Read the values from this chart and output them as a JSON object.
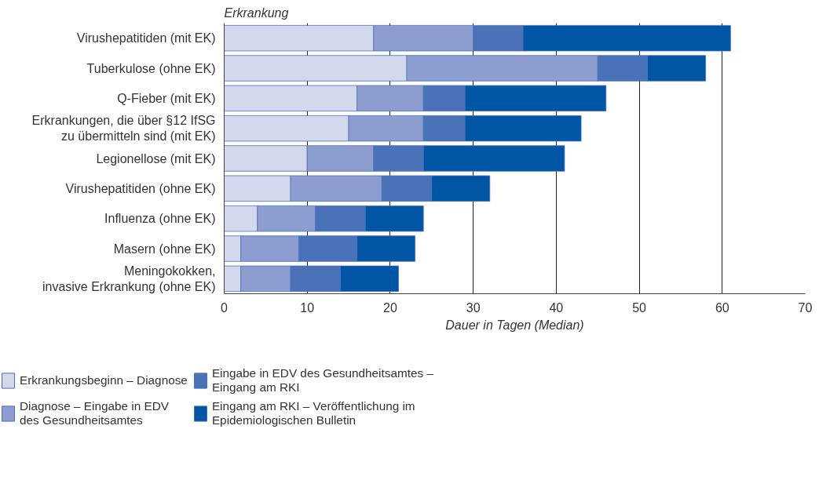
{
  "chart_data": {
    "type": "bar",
    "orientation": "horizontal",
    "stacked": true,
    "ylabel": "Erkrankung",
    "xlabel": "Dauer in Tagen (Median)",
    "categories": [
      "Virushepatitiden (mit EK)",
      "Tuberkulose (ohne EK)",
      "Q-Fieber (mit EK)",
      "Erkrankungen, die über §12 IfSG\nzu übermitteln sind (mit EK)",
      "Legionellose (mit EK)",
      "Virushepatitiden (ohne EK)",
      "Influenza (ohne EK)",
      "Masern (ohne EK)",
      "Meningokokken,\ninvasive Erkrankung (ohne EK)"
    ],
    "series": [
      {
        "name": "Erkrankungsbeginn – Diagnose",
        "color": "#d3d8ec",
        "values": [
          18,
          22,
          16,
          15,
          10,
          8,
          4,
          2,
          2
        ]
      },
      {
        "name": "Diagnose – Eingabe in EDV\ndes Gesundheitsamtes",
        "color": "#8d9dd0",
        "values": [
          12,
          23,
          8,
          9,
          8,
          11,
          7,
          7,
          6
        ]
      },
      {
        "name": "Eingabe in EDV des Gesundheitsamtes –\nEingang am RKI",
        "color": "#4a72b8",
        "values": [
          6,
          6,
          5,
          5,
          6,
          6,
          6,
          7,
          6
        ]
      },
      {
        "name": "Eingang am RKI – Veröffentlichung im\nEpidemiologischen Bulletin",
        "color": "#0055a4",
        "values": [
          25,
          7,
          17,
          14,
          17,
          7,
          7,
          7,
          7
        ]
      }
    ],
    "xlim": [
      0,
      70
    ],
    "xticks": [
      0,
      10,
      20,
      30,
      40,
      50,
      60,
      70
    ],
    "grid": "x",
    "legend": "bottom"
  }
}
